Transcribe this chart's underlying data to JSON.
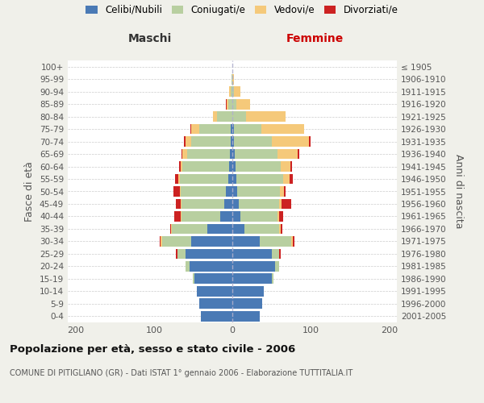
{
  "age_groups_display": [
    "0-4",
    "5-9",
    "10-14",
    "15-19",
    "20-24",
    "25-29",
    "30-34",
    "35-39",
    "40-44",
    "45-49",
    "50-54",
    "55-59",
    "60-64",
    "65-69",
    "70-74",
    "75-79",
    "80-84",
    "85-89",
    "90-94",
    "95-99",
    "100+"
  ],
  "birth_years_display": [
    "2001-2005",
    "1996-2000",
    "1991-1995",
    "1986-1990",
    "1981-1985",
    "1976-1980",
    "1971-1975",
    "1966-1970",
    "1961-1965",
    "1956-1960",
    "1951-1955",
    "1946-1950",
    "1941-1945",
    "1936-1940",
    "1931-1935",
    "1926-1930",
    "1921-1925",
    "1916-1920",
    "1911-1915",
    "1906-1910",
    "≤ 1905"
  ],
  "maschi_celibi": [
    40,
    42,
    45,
    48,
    55,
    60,
    52,
    32,
    15,
    10,
    8,
    5,
    4,
    3,
    2,
    2,
    0,
    0,
    0,
    0,
    0
  ],
  "maschi_coniugati": [
    0,
    0,
    0,
    2,
    5,
    10,
    38,
    45,
    50,
    55,
    58,
    62,
    60,
    55,
    50,
    40,
    20,
    5,
    2,
    1,
    0
  ],
  "maschi_vedovi": [
    0,
    0,
    0,
    0,
    0,
    0,
    2,
    1,
    1,
    1,
    1,
    2,
    2,
    6,
    8,
    10,
    5,
    2,
    2,
    0,
    0
  ],
  "maschi_divorziati": [
    0,
    0,
    0,
    0,
    0,
    2,
    1,
    1,
    8,
    6,
    8,
    4,
    2,
    1,
    2,
    2,
    0,
    1,
    0,
    0,
    0
  ],
  "femmine_nubili": [
    35,
    38,
    40,
    50,
    55,
    50,
    35,
    15,
    10,
    8,
    6,
    5,
    4,
    3,
    2,
    2,
    0,
    0,
    0,
    0,
    0
  ],
  "femmine_coniugate": [
    0,
    0,
    0,
    2,
    5,
    10,
    40,
    45,
    48,
    52,
    55,
    60,
    58,
    55,
    48,
    35,
    18,
    5,
    2,
    0,
    0
  ],
  "femmine_vedove": [
    0,
    0,
    0,
    0,
    0,
    0,
    2,
    2,
    2,
    3,
    5,
    8,
    12,
    25,
    48,
    55,
    50,
    18,
    8,
    2,
    0
  ],
  "femmine_divorziate": [
    0,
    0,
    0,
    0,
    0,
    2,
    2,
    2,
    5,
    12,
    2,
    4,
    2,
    2,
    2,
    0,
    0,
    0,
    0,
    0,
    0
  ],
  "colors": {
    "celibi_nubili": "#4a7ab5",
    "coniugati": "#b8cfa0",
    "vedovi": "#f5c97a",
    "divorziati": "#cc2222"
  },
  "xlim": 210,
  "title": "Popolazione per età, sesso e stato civile - 2006",
  "subtitle": "COMUNE DI PITIGLIANO (GR) - Dati ISTAT 1° gennaio 2006 - Elaborazione TUTTITALIA.IT",
  "ylabel_left": "Fasce di età",
  "ylabel_right": "Anni di nascita",
  "xlabel_maschi": "Maschi",
  "xlabel_femmine": "Femmine",
  "bg_color": "#f0f0ea",
  "plot_bg_color": "#ffffff"
}
